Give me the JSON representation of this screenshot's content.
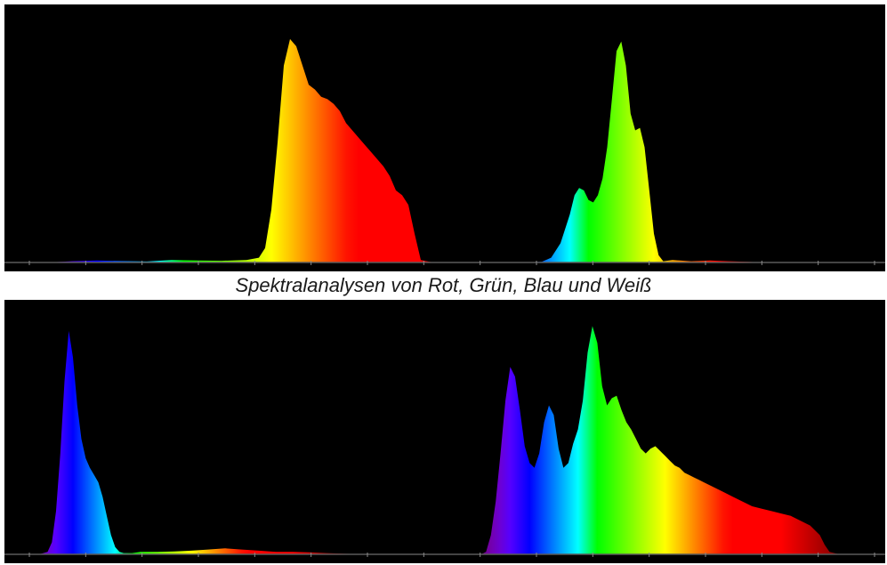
{
  "caption": "Spektralanalysen von Rot, Grün, Blau und Weiß",
  "colors": {
    "background": "#000000",
    "baseline": "#5a5a5a",
    "tick": "#8a8a8a"
  },
  "chart_data": [
    {
      "type": "area",
      "xlim": [
        380,
        780
      ],
      "ylim": [
        0,
        1
      ],
      "axis_ticks": 16,
      "series": [
        {
          "x": [
            380,
            400,
            420,
            440,
            460,
            480,
            500,
            520,
            540,
            560,
            570,
            575,
            580,
            585,
            590,
            595,
            600,
            605,
            610,
            615,
            620,
            625,
            630,
            635,
            640,
            645,
            650,
            655,
            660,
            665,
            670,
            675,
            680,
            685,
            690,
            695,
            700,
            710,
            720,
            740,
            760,
            780
          ],
          "values": [
            0,
            0,
            0.005,
            0.008,
            0.006,
            0.004,
            0.01,
            0.008,
            0.007,
            0.01,
            0.02,
            0.06,
            0.22,
            0.5,
            0.82,
            0.93,
            0.9,
            0.82,
            0.74,
            0.72,
            0.69,
            0.68,
            0.66,
            0.63,
            0.58,
            0.55,
            0.52,
            0.49,
            0.46,
            0.43,
            0.4,
            0.36,
            0.3,
            0.28,
            0.24,
            0.12,
            0.01,
            0,
            0,
            0,
            0,
            0
          ]
        },
        {
          "x": [
            380,
            440,
            460,
            470,
            480,
            490,
            495,
            500,
            505,
            510,
            515,
            520,
            525,
            530,
            535,
            540,
            545,
            550,
            555,
            560,
            565,
            570,
            575,
            580,
            585,
            590,
            600,
            620,
            640,
            660,
            680,
            700,
            780
          ],
          "values": [
            0,
            0,
            0.003,
            0.02,
            0.08,
            0.2,
            0.28,
            0.31,
            0.3,
            0.26,
            0.25,
            0.28,
            0.35,
            0.48,
            0.68,
            0.88,
            0.92,
            0.82,
            0.62,
            0.55,
            0.56,
            0.48,
            0.3,
            0.12,
            0.03,
            0.005,
            0.01,
            0.005,
            0.008,
            0.005,
            0.003,
            0,
            0
          ]
        },
        {
          "x": [
            380,
            400,
            410,
            415,
            420,
            425,
            430,
            435,
            440,
            445,
            450,
            455,
            460,
            465,
            470,
            475,
            480,
            485,
            490,
            495,
            500,
            505,
            510,
            520,
            540,
            560,
            580,
            600,
            620,
            640,
            660,
            680,
            700,
            720,
            740,
            760,
            780
          ],
          "values": [
            0,
            0,
            0.01,
            0.05,
            0.18,
            0.42,
            0.72,
            0.93,
            0.82,
            0.62,
            0.48,
            0.4,
            0.36,
            0.33,
            0.3,
            0.24,
            0.16,
            0.08,
            0.03,
            0.01,
            0.005,
            0.005,
            0.005,
            0.01,
            0.01,
            0.012,
            0.015,
            0.02,
            0.025,
            0.02,
            0.015,
            0.01,
            0.01,
            0.008,
            0.005,
            0.003,
            0
          ]
        },
        {
          "x": [
            380,
            390,
            395,
            400,
            405,
            410,
            415,
            420,
            425,
            430,
            435,
            440,
            445,
            450,
            455,
            460,
            465,
            470,
            475,
            480,
            485,
            490,
            495,
            500,
            505,
            510,
            515,
            520,
            525,
            530,
            535,
            540,
            545,
            550,
            555,
            560,
            565,
            570,
            575,
            580,
            585,
            590,
            595,
            600,
            605,
            610,
            615,
            620,
            630,
            640,
            650,
            660,
            670,
            680,
            690,
            700,
            710,
            720,
            730,
            740,
            745,
            750,
            760,
            780
          ],
          "values": [
            0,
            0,
            0.01,
            0.08,
            0.22,
            0.42,
            0.64,
            0.78,
            0.74,
            0.6,
            0.45,
            0.38,
            0.36,
            0.42,
            0.55,
            0.62,
            0.58,
            0.44,
            0.36,
            0.38,
            0.46,
            0.52,
            0.64,
            0.84,
            0.95,
            0.88,
            0.7,
            0.62,
            0.65,
            0.66,
            0.6,
            0.55,
            0.52,
            0.48,
            0.44,
            0.42,
            0.44,
            0.45,
            0.43,
            0.41,
            0.39,
            0.37,
            0.36,
            0.34,
            0.33,
            0.32,
            0.31,
            0.3,
            0.28,
            0.26,
            0.24,
            0.22,
            0.2,
            0.19,
            0.18,
            0.17,
            0.16,
            0.14,
            0.12,
            0.08,
            0.04,
            0.01,
            0,
            0
          ]
        }
      ]
    }
  ]
}
